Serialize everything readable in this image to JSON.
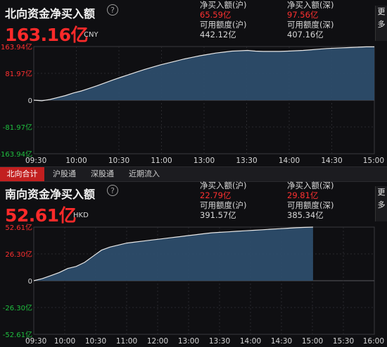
{
  "north": {
    "title": "北向资金净买入额",
    "help_icon": "?",
    "amount": "163.16亿",
    "currency": "CNY",
    "stats": {
      "sh_label": "净买入额(沪)",
      "sh_value": "65.59亿",
      "sz_label": "净买入额(深)",
      "sz_value": "97.56亿",
      "sh_quota_label": "可用额度(沪)",
      "sh_quota_value": "442.12亿",
      "sz_quota_label": "可用额度(深)",
      "sz_quota_value": "407.16亿"
    },
    "more_label": "更多",
    "chart": {
      "y_ticks": [
        "163.94亿",
        "81.97亿",
        "0",
        "-81.97亿",
        "-163.94亿"
      ],
      "x_ticks": [
        "09:30",
        "10:00",
        "10:30",
        "11:00",
        "13:00",
        "13:30",
        "14:00",
        "14:30",
        "15:00"
      ]
    }
  },
  "tabs": [
    "北向合计",
    "沪股通",
    "深股通",
    "近期流入"
  ],
  "south": {
    "title": "南向资金净买入额",
    "help_icon": "?",
    "amount": "52.61亿",
    "currency": "HKD",
    "stats": {
      "sh_label": "净买入额(沪)",
      "sh_value": "22.79亿",
      "sz_label": "净买入额(深)",
      "sz_value": "29.81亿",
      "sh_quota_label": "可用额度(沪)",
      "sh_quota_value": "391.57亿",
      "sz_quota_label": "可用额度(深)",
      "sz_quota_value": "385.34亿"
    },
    "more_label": "更多",
    "chart": {
      "y_ticks": [
        "52.61亿",
        "26.30亿",
        "0",
        "-26.30亿",
        "-52.61亿"
      ],
      "x_ticks": [
        "09:30",
        "10:00",
        "10:30",
        "11:00",
        "12:00",
        "13:00",
        "13:30",
        "14:00",
        "14:30",
        "15:00",
        "15:30",
        "16:00"
      ]
    }
  },
  "chart_data": [
    {
      "type": "area",
      "series": [
        {
          "values_yi": [
            0,
            -2,
            2,
            8,
            14,
            22,
            28,
            36,
            44,
            53,
            62,
            70,
            78,
            86,
            94,
            101,
            108,
            114,
            120,
            126,
            131,
            136,
            140,
            144,
            147,
            150,
            151,
            152,
            150,
            149,
            149,
            149,
            150,
            151,
            152,
            154,
            156,
            158,
            159,
            160,
            161,
            162,
            163,
            163.16
          ]
        }
      ],
      "ylim": [
        -163.94,
        163.94
      ]
    },
    {
      "type": "area",
      "series": [
        {
          "values_yi": [
            0,
            2,
            5,
            8,
            12,
            14,
            18,
            24,
            30,
            33,
            35,
            37,
            38,
            39,
            40,
            41,
            42,
            43,
            44,
            45,
            46,
            47,
            47.5,
            48,
            48.5,
            49,
            49.5,
            50,
            50.5,
            51,
            51.5,
            52,
            52.3,
            52.61
          ]
        }
      ],
      "ylim": [
        -52.61,
        52.61
      ]
    }
  ],
  "colors": {
    "up": "#ff3030",
    "down": "#1fbf3f",
    "line": "#e8e8e8",
    "fill": "#2d4d6b"
  }
}
